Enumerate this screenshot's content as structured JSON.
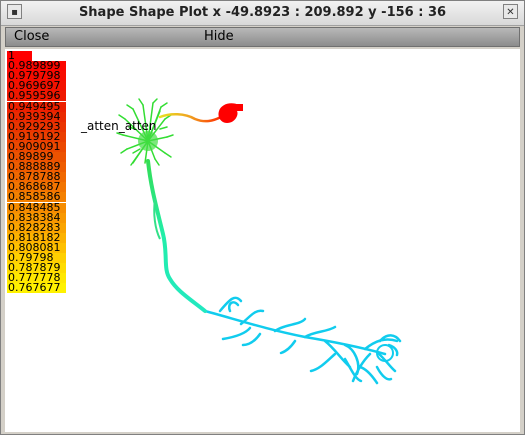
{
  "window": {
    "title": "Shape Shape Plot x -49.8923 : 209.892  y -156 : 36",
    "left_button_icon": "square-icon",
    "right_button_icon": "close-x-icon"
  },
  "menu": {
    "close_label": "Close",
    "hide_label": "Hide"
  },
  "plot": {
    "section_label": "_atten_atten",
    "scale": [
      {
        "value": "1",
        "color": "#ff0000"
      },
      {
        "value": "0.989899",
        "color": "#fb0600"
      },
      {
        "value": "0.979798",
        "color": "#f70c00"
      },
      {
        "value": "0.969697",
        "color": "#f31200"
      },
      {
        "value": "0.959596",
        "color": "#ef1800"
      },
      {
        "value": "0.949495",
        "color": "#ec2000"
      },
      {
        "value": "0.939394",
        "color": "#ea2a00"
      },
      {
        "value": "0.929293",
        "color": "#ea3400"
      },
      {
        "value": "0.919192",
        "color": "#ea3e00"
      },
      {
        "value": "0.909091",
        "color": "#eb4800"
      },
      {
        "value": "0.89899",
        "color": "#ec5200"
      },
      {
        "value": "0.888889",
        "color": "#ee5c00"
      },
      {
        "value": "0.878788",
        "color": "#f06800"
      },
      {
        "value": "0.868687",
        "color": "#f27400"
      },
      {
        "value": "0.858586",
        "color": "#f48000"
      },
      {
        "value": "0.848485",
        "color": "#f68c00"
      },
      {
        "value": "0.838384",
        "color": "#f89800"
      },
      {
        "value": "0.828283",
        "color": "#faa400"
      },
      {
        "value": "0.818182",
        "color": "#fcb200"
      },
      {
        "value": "0.808081",
        "color": "#fec000"
      },
      {
        "value": "0.79798",
        "color": "#ffd000"
      },
      {
        "value": "0.787879",
        "color": "#ffdc00"
      },
      {
        "value": "0.777778",
        "color": "#ffe800"
      },
      {
        "value": "0.767677",
        "color": "#fff200"
      }
    ],
    "colors": {
      "soma_red": "#ff0000",
      "axon_yellow": "#f0c800",
      "dendrite_green": "#33dd33",
      "trunk_aqua": "#22eeaa",
      "distal_cyan": "#11ccee"
    }
  }
}
